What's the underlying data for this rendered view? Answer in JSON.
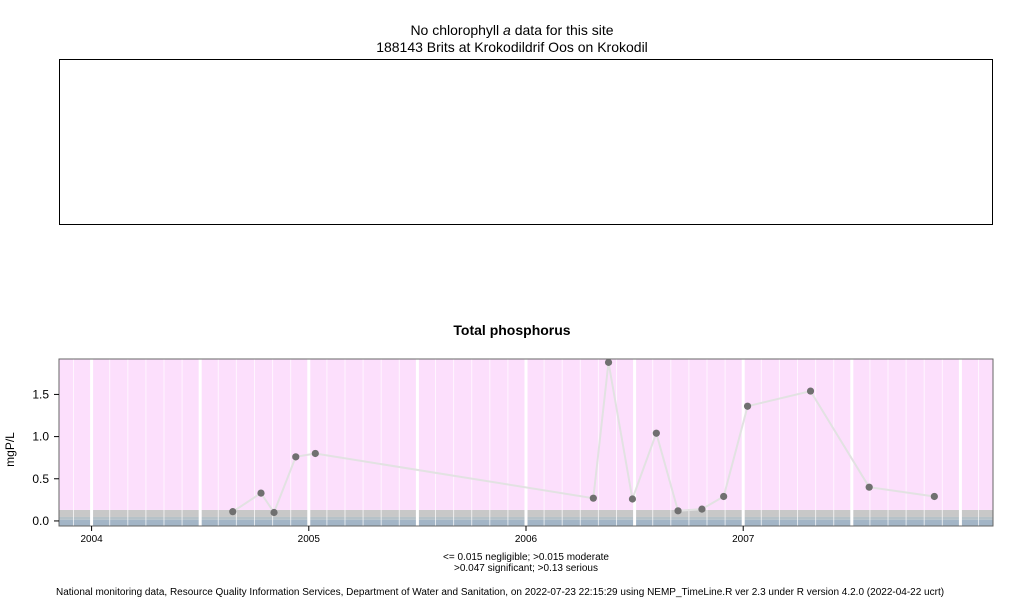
{
  "header": {
    "title_prefix": "No chlorophyll",
    "title_italic": "a",
    "title_suffix": "data for this site",
    "site": "188143 Brits at Krokodildrif Oos on Krokodil"
  },
  "chart_data": {
    "type": "line",
    "title": "Total phosphorus",
    "xlabel": "",
    "ylabel": "mgP/L",
    "xlim": [
      2003.85,
      2008.15
    ],
    "ylim": [
      -0.06,
      1.92
    ],
    "x_ticks": [
      2004,
      2005,
      2006,
      2007
    ],
    "x_tick_labels": [
      "2004",
      "2005",
      "2006",
      "2007"
    ],
    "y_ticks": [
      0.0,
      0.5,
      1.0,
      1.5
    ],
    "y_tick_labels": [
      "0.0",
      "0.5",
      "1.0",
      "1.5"
    ],
    "grid": true,
    "background_bands": [
      {
        "from": -0.06,
        "to": 0.015,
        "color": "#a3b5c6"
      },
      {
        "from": 0.015,
        "to": 0.047,
        "color": "#b6c2c8"
      },
      {
        "from": 0.047,
        "to": 0.13,
        "color": "#c8c8c8"
      },
      {
        "from": 0.13,
        "to": 1.92,
        "color": "#fcdffc"
      }
    ],
    "series": [
      {
        "line_color": "#e2e2e2",
        "point_color": "#707070",
        "points": [
          {
            "x": 2004.65,
            "y": 0.11
          },
          {
            "x": 2004.78,
            "y": 0.33
          },
          {
            "x": 2004.84,
            "y": 0.1
          },
          {
            "x": 2004.94,
            "y": 0.76
          },
          {
            "x": 2005.03,
            "y": 0.8
          },
          {
            "x": 2006.31,
            "y": 0.27
          },
          {
            "x": 2006.38,
            "y": 1.88
          },
          {
            "x": 2006.49,
            "y": 0.26
          },
          {
            "x": 2006.6,
            "y": 1.04
          },
          {
            "x": 2006.7,
            "y": 0.12
          },
          {
            "x": 2006.81,
            "y": 0.14
          },
          {
            "x": 2006.91,
            "y": 0.29
          },
          {
            "x": 2007.02,
            "y": 1.36
          },
          {
            "x": 2007.31,
            "y": 1.54
          },
          {
            "x": 2007.58,
            "y": 0.4
          },
          {
            "x": 2007.88,
            "y": 0.29
          }
        ]
      }
    ],
    "legend_lines": [
      "<= 0.015 negligible; >0.015 moderate",
      ">0.047 significant; >0.13 serious"
    ]
  },
  "footer": "National monitoring data, Resource Quality Information Services, Department of Water and Sanitation, on 2022-07-23 22:15:29 using NEMP_TimeLine.R ver 2.3 under R version 4.2.0 (2022-04-22 ucrt)"
}
